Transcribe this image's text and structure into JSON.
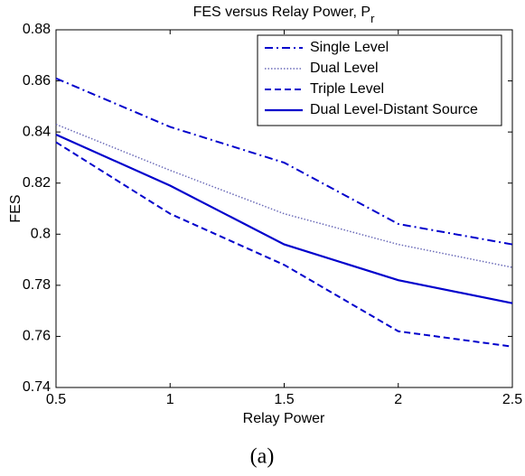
{
  "chart_data": {
    "type": "line",
    "title": "FES versus Relay Power, P",
    "title_subscript": "r",
    "x_label": "Relay Power",
    "y_label": "FES",
    "caption": "(a)",
    "x": [
      0.5,
      1,
      1.5,
      2,
      2.5
    ],
    "xlim": [
      0.5,
      2.5
    ],
    "xticks": [
      0.5,
      1,
      1.5,
      2,
      2.5
    ],
    "ylim": [
      0.74,
      0.88
    ],
    "yticks": [
      0.74,
      0.76,
      0.78,
      0.8,
      0.82,
      0.84,
      0.86,
      0.88
    ],
    "legend": "upper right",
    "series": [
      {
        "name": "Single Level",
        "color": "#0000cc",
        "style": "dashdot",
        "values": [
          0.861,
          0.842,
          0.828,
          0.804,
          0.796
        ]
      },
      {
        "name": "Dual Level",
        "color": "#6a6ab8",
        "style": "dotted",
        "values": [
          0.843,
          0.825,
          0.808,
          0.796,
          0.787
        ]
      },
      {
        "name": "Triple Level",
        "color": "#0000cc",
        "style": "dashed",
        "values": [
          0.836,
          0.808,
          0.788,
          0.762,
          0.756
        ]
      },
      {
        "name": "Dual Level-Distant Source",
        "color": "#0000cc",
        "style": "solid",
        "values": [
          0.839,
          0.819,
          0.796,
          0.782,
          0.773
        ]
      }
    ]
  }
}
